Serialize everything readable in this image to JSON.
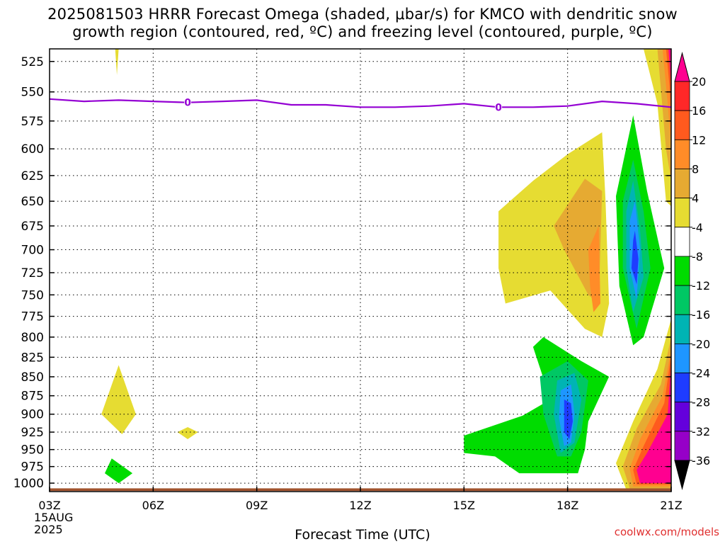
{
  "title_line1": "2025081503 HRRR Forecast Omega (shaded, μbar/s) for KMCO with dendritic snow",
  "title_line2": "growth region (contoured, red, ºC) and freezing level (contoured, purple, ºC)",
  "credit": "coolwx.com/models",
  "chart_data": {
    "type": "heatmap",
    "title": "2025081503 HRRR Forecast Omega (shaded, μbar/s) for KMCO with dendritic snow growth region (contoured, red, ºC) and freezing level (contoured, purple, ºC)",
    "xlabel": "Forecast Time (UTC)",
    "x_ticks": [
      "03Z",
      "06Z",
      "09Z",
      "12Z",
      "15Z",
      "18Z",
      "21Z"
    ],
    "x_tick_hours": [
      3,
      6,
      9,
      12,
      15,
      18,
      21
    ],
    "x_date_label": [
      "15AUG",
      "2025"
    ],
    "xlim": [
      3,
      21
    ],
    "y_ticks": [
      525,
      550,
      575,
      600,
      625,
      650,
      675,
      700,
      725,
      750,
      775,
      800,
      825,
      850,
      875,
      900,
      925,
      950,
      975,
      1000
    ],
    "ylim": [
      1013,
      515
    ],
    "y_scale": "log",
    "y_inverted": true,
    "grid": true,
    "colorbar": {
      "labels": [
        "20",
        "16",
        "12",
        "8",
        "4",
        "-4",
        "-8",
        "-12",
        "-16",
        "-20",
        "-24",
        "-28",
        "-32",
        "-36"
      ],
      "levels": [
        20,
        16,
        12,
        8,
        4,
        -4,
        -8,
        -12,
        -16,
        -20,
        -24,
        -28,
        -32,
        -36
      ],
      "colors": [
        "#ff0090",
        "#ff2828",
        "#ff5a1e",
        "#ff8c28",
        "#e6aa32",
        "#e6dc32",
        "#ffffff",
        "#00dc00",
        "#00c864",
        "#00b4b4",
        "#1e96ff",
        "#1e3cff",
        "#6400dc",
        "#9600c8",
        "#a0a0a0",
        "#000000"
      ]
    },
    "freezing_level": {
      "label": "0",
      "color": "#9400d3",
      "points": [
        [
          3,
          556
        ],
        [
          4,
          558
        ],
        [
          5,
          557
        ],
        [
          6,
          558
        ],
        [
          7,
          559
        ],
        [
          8,
          558
        ],
        [
          9,
          557
        ],
        [
          10,
          561
        ],
        [
          11,
          561
        ],
        [
          12,
          563
        ],
        [
          13,
          563
        ],
        [
          14,
          562
        ],
        [
          15,
          560
        ],
        [
          16,
          563
        ],
        [
          17,
          563
        ],
        [
          18,
          562
        ],
        [
          19,
          558
        ],
        [
          20,
          560
        ],
        [
          21,
          563
        ]
      ]
    },
    "omega_regions": [
      {
        "color": "#e6dc32",
        "points": [
          [
            5.0,
            835
          ],
          [
            5.5,
            900
          ],
          [
            5.1,
            928
          ],
          [
            4.5,
            900
          ]
        ]
      },
      {
        "color": "#e6dc32",
        "points": [
          [
            7.0,
            918
          ],
          [
            7.3,
            925
          ],
          [
            7.0,
            935
          ],
          [
            6.7,
            925
          ]
        ]
      },
      {
        "color": "#e6dc32",
        "points": [
          [
            4.9,
            515
          ],
          [
            5.0,
            515
          ],
          [
            4.95,
            536
          ]
        ]
      },
      {
        "color": "#00dc00",
        "points": [
          [
            4.8,
            963
          ],
          [
            5.4,
            985
          ],
          [
            5.0,
            1000
          ],
          [
            4.6,
            985
          ]
        ]
      },
      {
        "color": "#e6dc32",
        "points": [
          [
            16.0,
            660
          ],
          [
            17.0,
            630
          ],
          [
            18.0,
            605
          ],
          [
            19.0,
            585
          ],
          [
            19.1,
            650
          ],
          [
            19.2,
            760
          ],
          [
            19.0,
            800
          ],
          [
            18.5,
            790
          ],
          [
            17.5,
            745
          ],
          [
            16.2,
            760
          ],
          [
            16.0,
            720
          ]
        ]
      },
      {
        "color": "#e6aa32",
        "points": [
          [
            17.6,
            675
          ],
          [
            18.5,
            628
          ],
          [
            19.0,
            640
          ],
          [
            18.9,
            760
          ],
          [
            18.6,
            750
          ],
          [
            17.9,
            700
          ]
        ]
      },
      {
        "color": "#ff8c28",
        "points": [
          [
            18.6,
            700
          ],
          [
            18.9,
            675
          ],
          [
            18.95,
            760
          ],
          [
            18.75,
            770
          ],
          [
            18.65,
            740
          ]
        ]
      },
      {
        "color": "#00dc00",
        "points": [
          [
            19.9,
            570
          ],
          [
            20.3,
            640
          ],
          [
            20.8,
            720
          ],
          [
            20.2,
            800
          ],
          [
            19.9,
            810
          ],
          [
            19.5,
            740
          ],
          [
            19.4,
            645
          ]
        ]
      },
      {
        "color": "#00c864",
        "points": [
          [
            19.9,
            610
          ],
          [
            20.2,
            660
          ],
          [
            20.4,
            720
          ],
          [
            20.0,
            790
          ],
          [
            19.6,
            720
          ],
          [
            19.6,
            650
          ]
        ]
      },
      {
        "color": "#00b4b4",
        "points": [
          [
            19.9,
            630
          ],
          [
            20.1,
            680
          ],
          [
            20.2,
            730
          ],
          [
            19.9,
            770
          ],
          [
            19.7,
            720
          ],
          [
            19.7,
            660
          ]
        ]
      },
      {
        "color": "#1e96ff",
        "points": [
          [
            19.95,
            650
          ],
          [
            20.1,
            700
          ],
          [
            20.0,
            755
          ],
          [
            19.8,
            720
          ],
          [
            19.8,
            670
          ]
        ]
      },
      {
        "color": "#1e3cff",
        "points": [
          [
            19.95,
            680
          ],
          [
            20.05,
            710
          ],
          [
            20.0,
            738
          ],
          [
            19.85,
            720
          ],
          [
            19.9,
            690
          ]
        ]
      },
      {
        "color": "#00dc00",
        "points": [
          [
            16.7,
            902
          ],
          [
            17.5,
            880
          ],
          [
            17.0,
            812
          ],
          [
            17.3,
            800
          ],
          [
            18.4,
            830
          ],
          [
            19.2,
            850
          ],
          [
            18.6,
            910
          ],
          [
            18.5,
            950
          ],
          [
            18.3,
            985
          ],
          [
            17.7,
            985
          ],
          [
            16.6,
            985
          ],
          [
            15.9,
            960
          ],
          [
            15.0,
            955
          ],
          [
            15.0,
            930
          ]
        ]
      },
      {
        "color": "#00c864",
        "points": [
          [
            17.2,
            850
          ],
          [
            18.0,
            830
          ],
          [
            18.6,
            855
          ],
          [
            18.4,
            925
          ],
          [
            18.1,
            960
          ],
          [
            17.7,
            960
          ],
          [
            17.3,
            900
          ]
        ]
      },
      {
        "color": "#00b4b4",
        "points": [
          [
            17.7,
            855
          ],
          [
            18.2,
            845
          ],
          [
            18.4,
            880
          ],
          [
            18.2,
            940
          ],
          [
            17.8,
            955
          ],
          [
            17.6,
            900
          ]
        ]
      },
      {
        "color": "#1e96ff",
        "points": [
          [
            17.8,
            868
          ],
          [
            18.1,
            860
          ],
          [
            18.2,
            900
          ],
          [
            18.1,
            940
          ],
          [
            17.9,
            945
          ],
          [
            17.75,
            905
          ]
        ]
      },
      {
        "color": "#1e3cff",
        "points": [
          [
            17.9,
            880
          ],
          [
            18.1,
            885
          ],
          [
            18.15,
            910
          ],
          [
            18.05,
            935
          ],
          [
            17.9,
            925
          ]
        ]
      },
      {
        "color": "#e6dc32",
        "points": [
          [
            21.0,
            778
          ],
          [
            21.0,
            1010
          ],
          [
            19.7,
            1010
          ],
          [
            19.4,
            970
          ],
          [
            19.9,
            910
          ],
          [
            20.6,
            840
          ]
        ]
      },
      {
        "color": "#e6aa32",
        "points": [
          [
            21.0,
            800
          ],
          [
            21.0,
            1008
          ],
          [
            19.8,
            1008
          ],
          [
            19.6,
            975
          ],
          [
            20.0,
            920
          ],
          [
            20.7,
            860
          ]
        ]
      },
      {
        "color": "#ff8c28",
        "points": [
          [
            21.0,
            815
          ],
          [
            21.0,
            1005
          ],
          [
            19.9,
            1005
          ],
          [
            19.8,
            978
          ],
          [
            20.1,
            935
          ],
          [
            20.75,
            875
          ]
        ]
      },
      {
        "color": "#ff5a1e",
        "points": [
          [
            21.0,
            822
          ],
          [
            21.0,
            1002
          ],
          [
            20.0,
            1002
          ],
          [
            19.9,
            980
          ],
          [
            20.2,
            945
          ],
          [
            20.8,
            885
          ]
        ]
      },
      {
        "color": "#ff0090",
        "points": [
          [
            21.0,
            830
          ],
          [
            21.0,
            1000
          ],
          [
            20.1,
            1000
          ],
          [
            20.0,
            980
          ],
          [
            20.3,
            955
          ],
          [
            20.9,
            900
          ]
        ]
      },
      {
        "color": "#e6dc32",
        "points": [
          [
            20.2,
            515
          ],
          [
            21.0,
            515
          ],
          [
            21.0,
            655
          ],
          [
            20.85,
            650
          ],
          [
            20.6,
            560
          ]
        ]
      },
      {
        "color": "#e6aa32",
        "points": [
          [
            20.6,
            515
          ],
          [
            21.0,
            515
          ],
          [
            21.0,
            630
          ],
          [
            20.85,
            600
          ]
        ]
      },
      {
        "color": "#ff8c28",
        "points": [
          [
            20.75,
            515
          ],
          [
            21.0,
            515
          ],
          [
            21.0,
            600
          ],
          [
            20.9,
            560
          ]
        ]
      },
      {
        "color": "#ff5a1e",
        "points": [
          [
            20.85,
            515
          ],
          [
            21.0,
            515
          ],
          [
            21.0,
            575
          ],
          [
            20.95,
            545
          ]
        ]
      },
      {
        "color": "#ff0090",
        "points": [
          [
            20.92,
            515
          ],
          [
            21.0,
            515
          ],
          [
            21.0,
            545
          ]
        ]
      }
    ],
    "ground": {
      "color": "#a0522d",
      "levels": [
        1008,
        1012
      ]
    }
  }
}
